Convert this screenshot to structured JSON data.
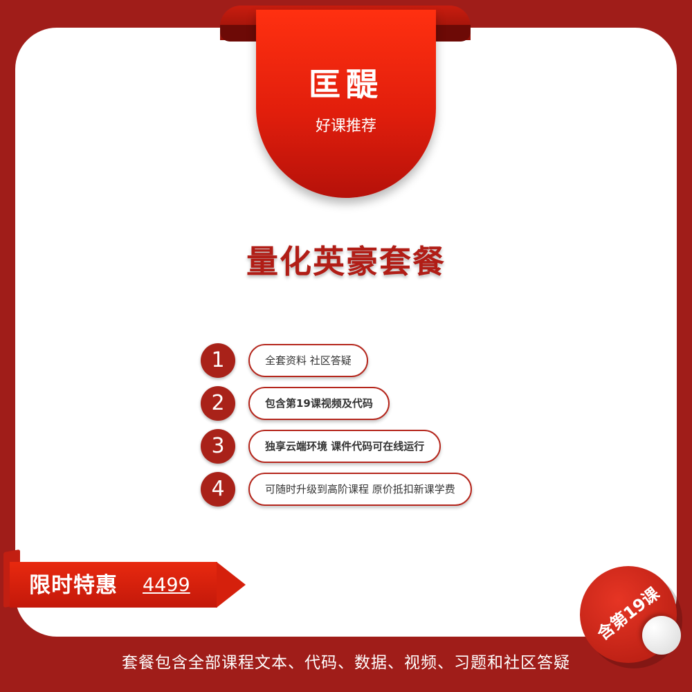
{
  "header": {
    "brand": "匡醍",
    "subtitle": "好课推荐"
  },
  "main": {
    "title": "量化英豪套餐",
    "features": [
      {
        "num": "1",
        "text": "全套资料 社区答疑"
      },
      {
        "num": "2",
        "text": "包含第19课视频及代码"
      },
      {
        "num": "3",
        "text": "独享云端环境 课件代码可在线运行"
      },
      {
        "num": "4",
        "text": "可随时升级到高阶课程 原价抵扣新课学费"
      }
    ]
  },
  "promo": {
    "label": "限时特惠",
    "price": "4499"
  },
  "seal": {
    "text": "含第19课"
  },
  "footer": {
    "text": "套餐包含全部课程文本、代码、数据、视频、习题和社区答疑"
  },
  "colors": {
    "background": "#a01d19",
    "accent": "#b11d16",
    "ribbon": "#e11e0c"
  }
}
